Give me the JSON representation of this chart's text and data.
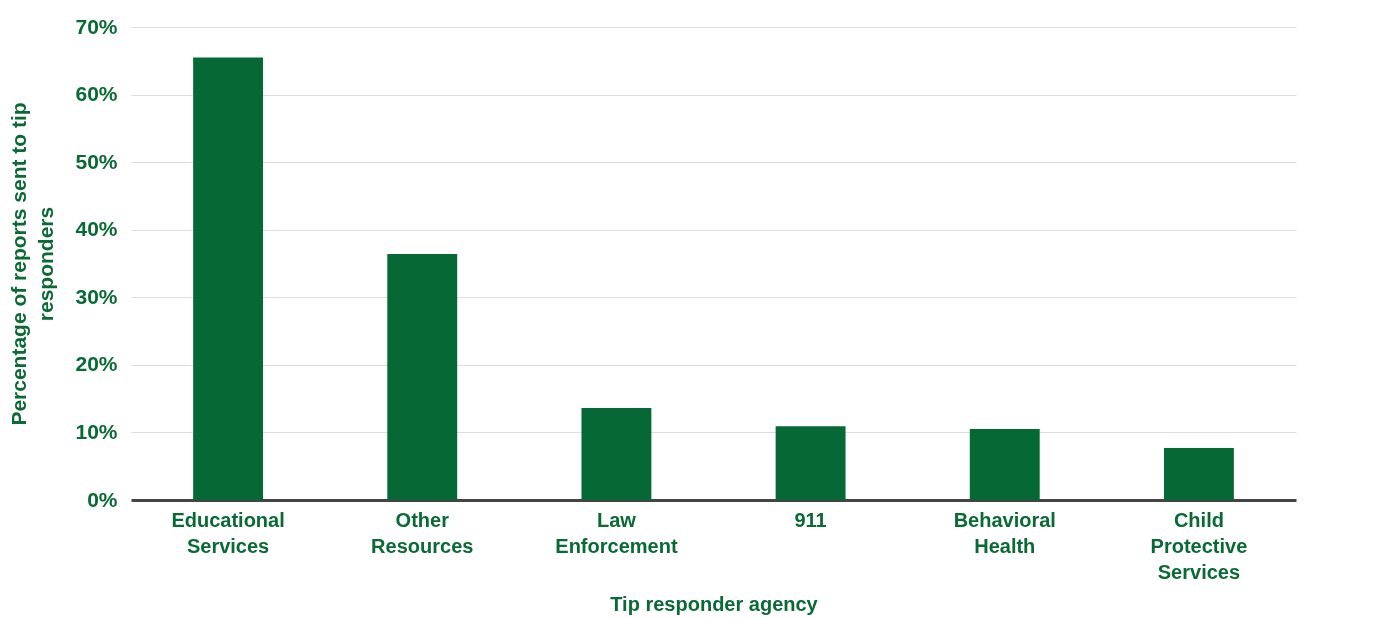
{
  "chart_data": {
    "type": "bar",
    "xlabel": "Tip responder agency",
    "ylabel": "Percentage of reports sent to tip responders",
    "categories": [
      "Educational Services",
      "Other Resources",
      "Law Enforcement",
      "911",
      "Behavioral Health",
      "Child Protective Services"
    ],
    "values": [
      65.5,
      36.4,
      13.6,
      10.9,
      10.5,
      7.7
    ],
    "color": "#056835",
    "ylim": [
      0,
      70
    ],
    "yticks": [
      {
        "value": 0,
        "label": "0%"
      },
      {
        "value": 10,
        "label": "10%"
      },
      {
        "value": 20,
        "label": "20%"
      },
      {
        "value": 30,
        "label": "30%"
      },
      {
        "value": 40,
        "label": "40%"
      },
      {
        "value": 50,
        "label": "50%"
      },
      {
        "value": 60,
        "label": "60%"
      },
      {
        "value": 70,
        "label": "70%"
      }
    ],
    "grid": "y"
  }
}
